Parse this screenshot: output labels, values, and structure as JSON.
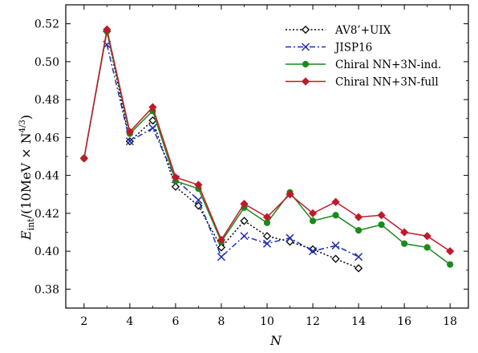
{
  "chart_data": {
    "type": "line",
    "title": "",
    "xlabel": "N",
    "ylabel": {
      "symbol": "E",
      "subscript": "int",
      "unit_prefix": "/(10MeV × N",
      "unit_exponent": "4/3",
      "unit_suffix": ")"
    },
    "xlim": [
      1.2,
      18.8
    ],
    "ylim": [
      0.37,
      0.53
    ],
    "xticks": [
      2,
      4,
      6,
      8,
      10,
      12,
      14,
      16,
      18
    ],
    "yticks": [
      "0.38",
      "0.40",
      "0.42",
      "0.44",
      "0.46",
      "0.48",
      "0.50",
      "0.52"
    ],
    "ytick_values": [
      0.38,
      0.4,
      0.42,
      0.44,
      0.46,
      0.48,
      0.5,
      0.52
    ],
    "legend_position": "top-right",
    "series": [
      {
        "name": "AV8’+UIX",
        "color": "#000000",
        "line_style": "dotted",
        "marker": "open-diamond",
        "x": [
          2,
          3,
          4,
          5,
          6,
          7,
          8,
          9,
          10,
          11,
          12,
          13,
          14
        ],
        "y": [
          0.449,
          0.516,
          0.458,
          0.469,
          0.434,
          0.424,
          0.402,
          0.416,
          0.408,
          0.405,
          0.401,
          0.396,
          0.391
        ]
      },
      {
        "name": "JISP16",
        "color": "#1f2fb4",
        "line_style": "dashdot",
        "marker": "x",
        "x": [
          3,
          4,
          5,
          6,
          7,
          8,
          9,
          10,
          11,
          12,
          13,
          14
        ],
        "y": [
          0.509,
          0.458,
          0.465,
          0.438,
          0.427,
          0.397,
          0.408,
          0.404,
          0.407,
          0.4,
          0.403,
          0.397
        ]
      },
      {
        "name": "Chiral NN+3N-ind.",
        "color": "#1a8a1a",
        "line_style": "solid",
        "marker": "circle",
        "x": [
          2,
          3,
          4,
          5,
          6,
          7,
          8,
          9,
          10,
          11,
          12,
          13,
          14,
          15,
          16,
          17,
          18
        ],
        "y": [
          0.449,
          0.516,
          0.462,
          0.474,
          0.437,
          0.433,
          0.405,
          0.423,
          0.415,
          0.431,
          0.416,
          0.419,
          0.411,
          0.414,
          0.404,
          0.402,
          0.393
        ]
      },
      {
        "name": "Chiral NN+3N-full",
        "color": "#c01a2a",
        "line_style": "solid",
        "marker": "filled-diamond",
        "x": [
          2,
          3,
          4,
          5,
          6,
          7,
          8,
          9,
          10,
          11,
          12,
          13,
          14,
          15,
          16,
          17,
          18
        ],
        "y": [
          0.449,
          0.517,
          0.463,
          0.476,
          0.439,
          0.435,
          0.406,
          0.425,
          0.418,
          0.43,
          0.42,
          0.426,
          0.418,
          0.419,
          0.41,
          0.408,
          0.4
        ]
      }
    ]
  }
}
